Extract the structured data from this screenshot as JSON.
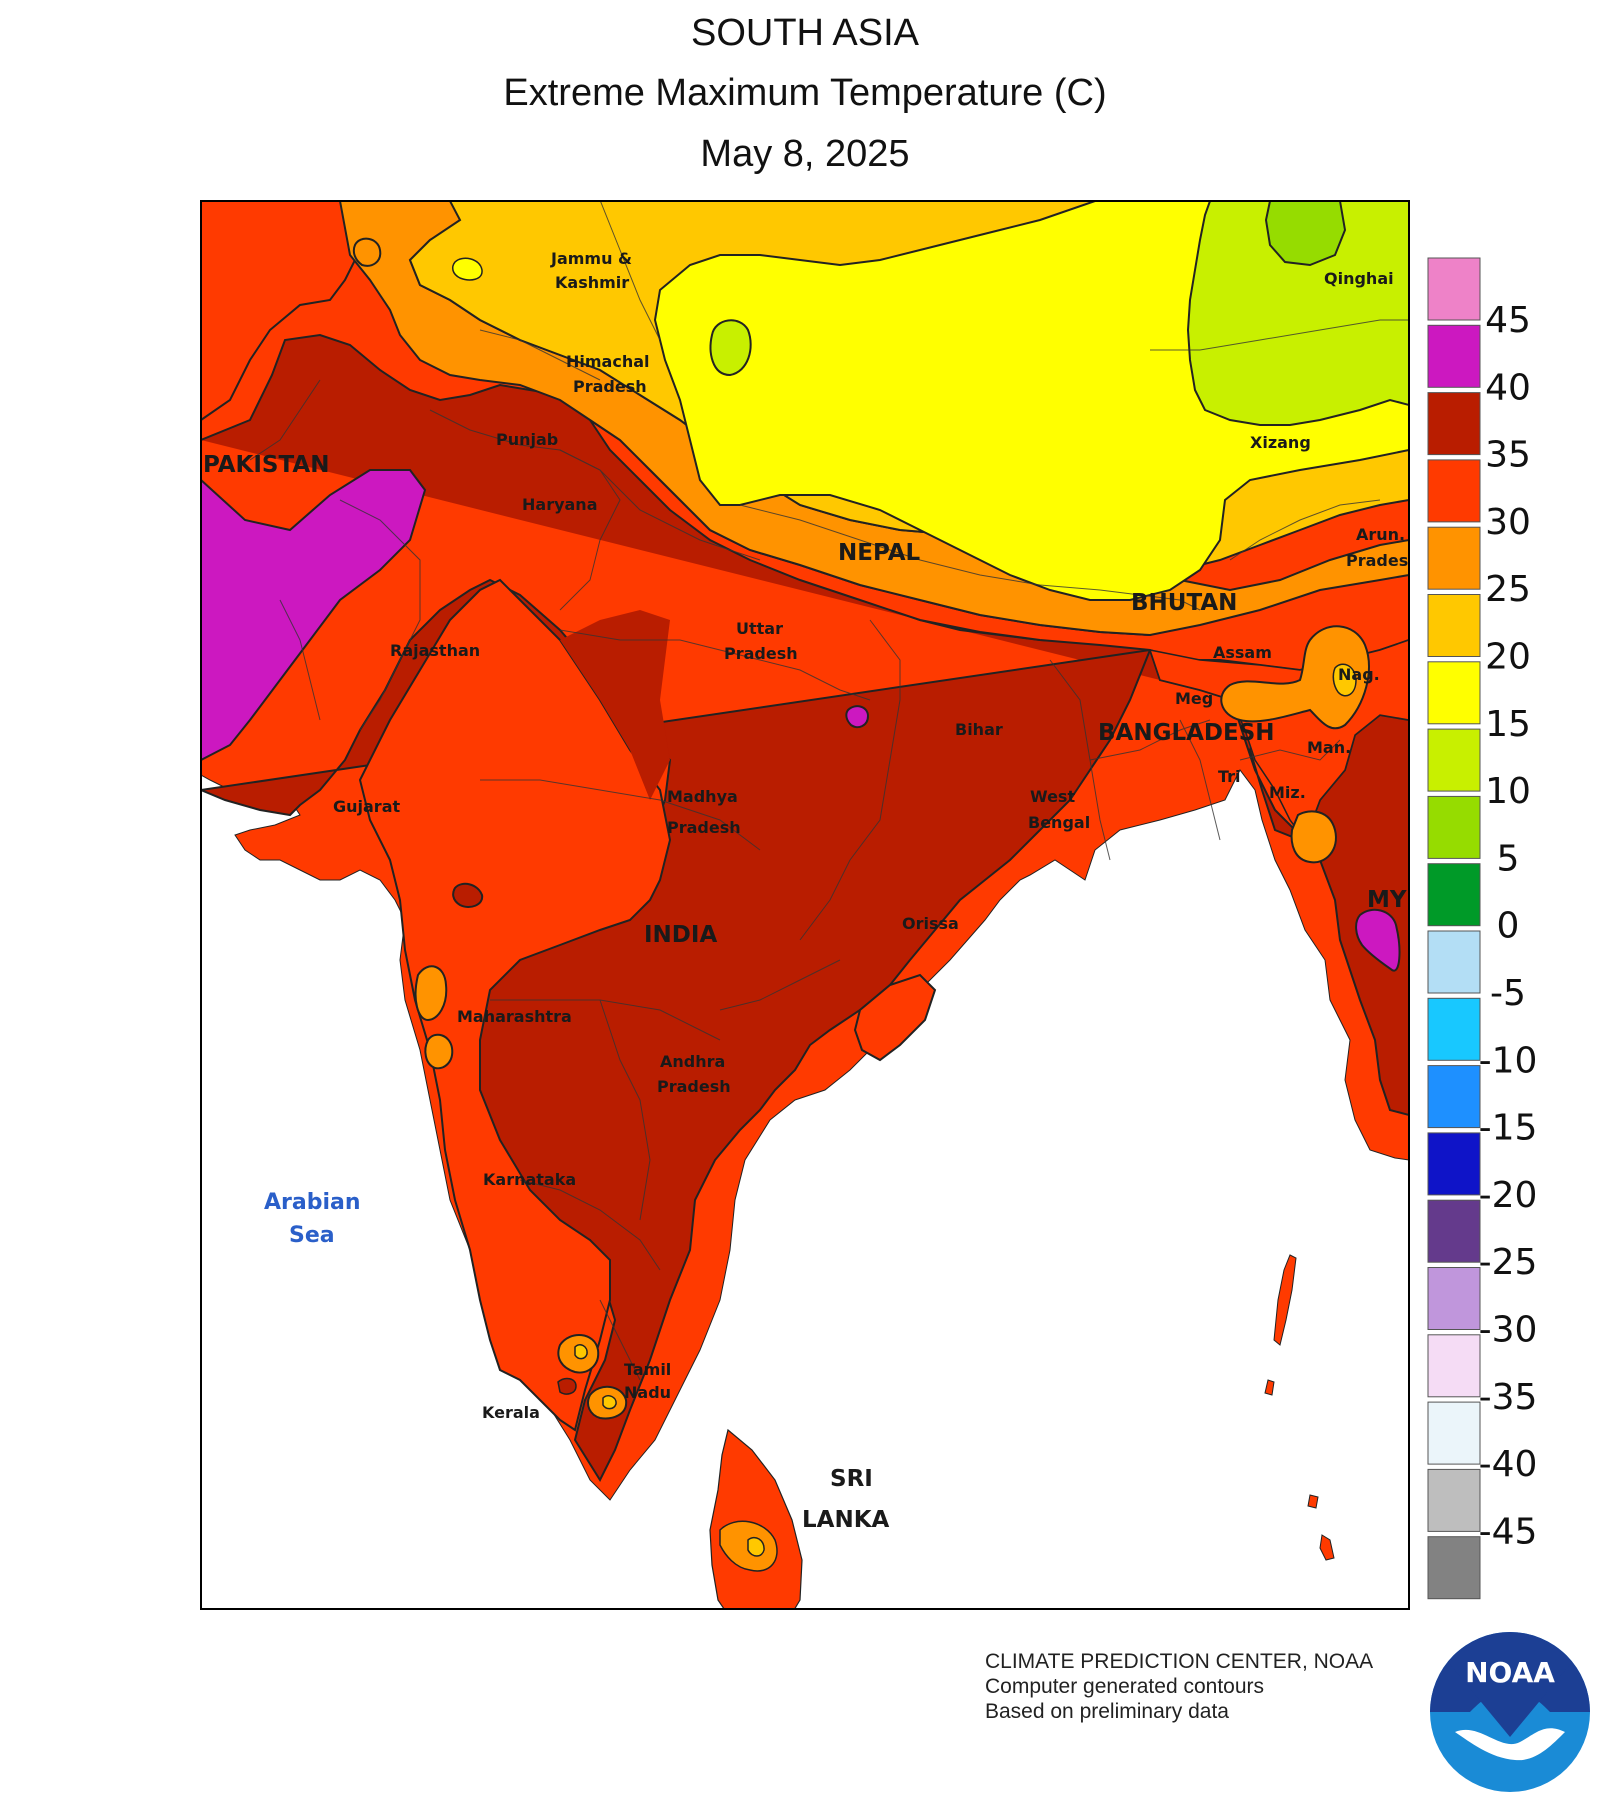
{
  "title": {
    "region": "SOUTH ASIA",
    "variable": "Extreme Maximum Temperature (C)",
    "date": "May 8, 2025"
  },
  "legend": {
    "bins": [
      {
        "label": "45",
        "color": "#ee82c8"
      },
      {
        "label": "40",
        "color": "#cc18c0"
      },
      {
        "label": "35",
        "color": "#b91d00"
      },
      {
        "label": "30",
        "color": "#ff3a00"
      },
      {
        "label": "25",
        "color": "#ff9300"
      },
      {
        "label": "20",
        "color": "#ffc800"
      },
      {
        "label": "15",
        "color": "#ffff00"
      },
      {
        "label": "10",
        "color": "#c8f000"
      },
      {
        "label": "5",
        "color": "#96dc00"
      },
      {
        "label": "0",
        "color": "#009a28"
      },
      {
        "label": "-5",
        "color": "#b3def5"
      },
      {
        "label": "-10",
        "color": "#18c8ff"
      },
      {
        "label": "-15",
        "color": "#1e90ff"
      },
      {
        "label": "-20",
        "color": "#0f14c8"
      },
      {
        "label": "-25",
        "color": "#643a8c"
      },
      {
        "label": "-30",
        "color": "#c096dc"
      },
      {
        "label": "-35",
        "color": "#f5dcf5"
      },
      {
        "label": "-40",
        "color": "#ebf5fa"
      },
      {
        "label": "-45",
        "color": "#bebebe"
      },
      {
        "label": "",
        "color": "#828282"
      }
    ]
  },
  "countries": {
    "pakistan": "PAKISTAN",
    "india": "INDIA",
    "nepal": "NEPAL",
    "bhutan": "BHUTAN",
    "bangladesh": "BANGLADESH",
    "sri_lanka_1": "SRI",
    "sri_lanka_2": "LANKA",
    "myanmar": "MY"
  },
  "regions": {
    "jk_1": "Jammu &",
    "jk_2": "Kashmir",
    "hp_1": "Himachal",
    "hp_2": "Pradesh",
    "punjab": "Punjab",
    "haryana": "Haryana",
    "rajasthan": "Rajasthan",
    "gujarat": "Gujarat",
    "up_1": "Uttar",
    "up_2": "Pradesh",
    "mp_1": "Madhya",
    "mp_2": "Pradesh",
    "bihar": "Bihar",
    "wb_1": "West",
    "wb_2": "Bengal",
    "orissa": "Orissa",
    "maharashtra": "Maharashtra",
    "ap_1": "Andhra",
    "ap_2": "Pradesh",
    "karnataka": "Karnataka",
    "tn_1": "Tamil",
    "tn_2": "Nadu",
    "kerala": "Kerala",
    "qinghai": "Qinghai",
    "xizang": "Xizang",
    "arun_1": "Arun.",
    "arun_2": "Prades",
    "assam": "Assam",
    "nag": "Nag.",
    "meg": "Meg",
    "man": "Man.",
    "tri": "Tri",
    "miz": "Miz."
  },
  "seas": {
    "arabian_1": "Arabian",
    "arabian_2": "Sea"
  },
  "credits": {
    "line1": "CLIMATE PREDICTION CENTER, NOAA",
    "line2": "Computer generated contours",
    "line3": "Based on preliminary data"
  },
  "logo_text": "NOAA"
}
